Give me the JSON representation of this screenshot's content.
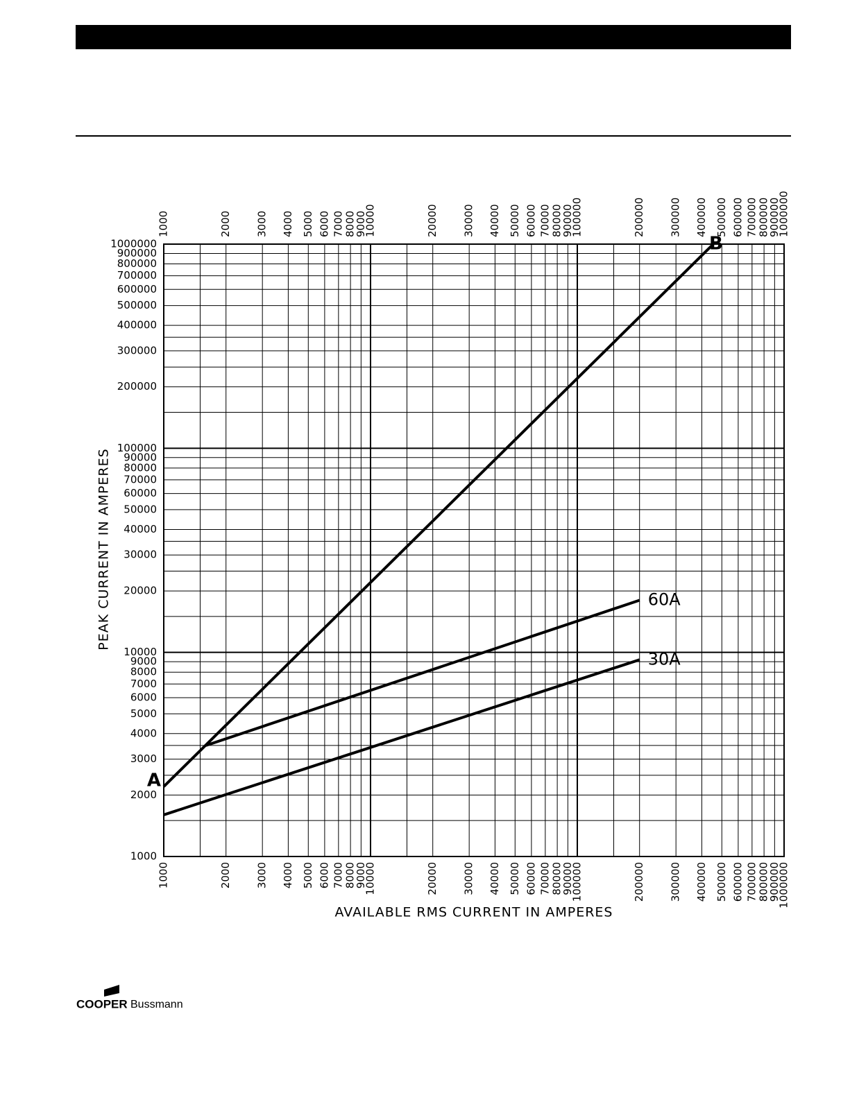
{
  "chart_data": {
    "type": "line",
    "x_label": "AVAILABLE RMS CURRENT IN AMPERES",
    "y_label": "PEAK CURRENT IN AMPERES",
    "log_x": true,
    "log_y": true,
    "grid": true,
    "color": "#000000",
    "xlim": [
      1000,
      1000000
    ],
    "ylim": [
      1000,
      1000000
    ],
    "xticks": [
      1000,
      2000,
      3000,
      4000,
      5000,
      6000,
      7000,
      8000,
      9000,
      10000,
      20000,
      30000,
      40000,
      50000,
      60000,
      70000,
      80000,
      90000,
      100000,
      200000,
      300000,
      400000,
      500000,
      600000,
      700000,
      800000,
      900000,
      1000000
    ],
    "yticks": [
      1000,
      2000,
      3000,
      4000,
      5000,
      6000,
      7000,
      8000,
      9000,
      10000,
      20000,
      30000,
      40000,
      50000,
      60000,
      70000,
      80000,
      90000,
      100000,
      200000,
      300000,
      400000,
      500000,
      600000,
      700000,
      800000,
      900000,
      1000000
    ],
    "x_minor_ticks": [
      1500,
      15000,
      150000
    ],
    "y_minor_ticks": [
      1500,
      2500,
      3500,
      15000,
      25000,
      35000,
      150000,
      250000,
      350000
    ],
    "series": [
      {
        "x": [
          1000,
          454545
        ],
        "values": [
          2200,
          1000000
        ],
        "point_labels": [
          "A",
          "B"
        ]
      },
      {
        "name": "60A",
        "x": [
          1600,
          200000
        ],
        "values": [
          3500,
          18000
        ]
      },
      {
        "name": "30A",
        "x": [
          1000,
          200000
        ],
        "values": [
          1600,
          9200
        ]
      }
    ]
  },
  "footer": {
    "brand": "COOPER",
    "sub": "Bussmann"
  }
}
